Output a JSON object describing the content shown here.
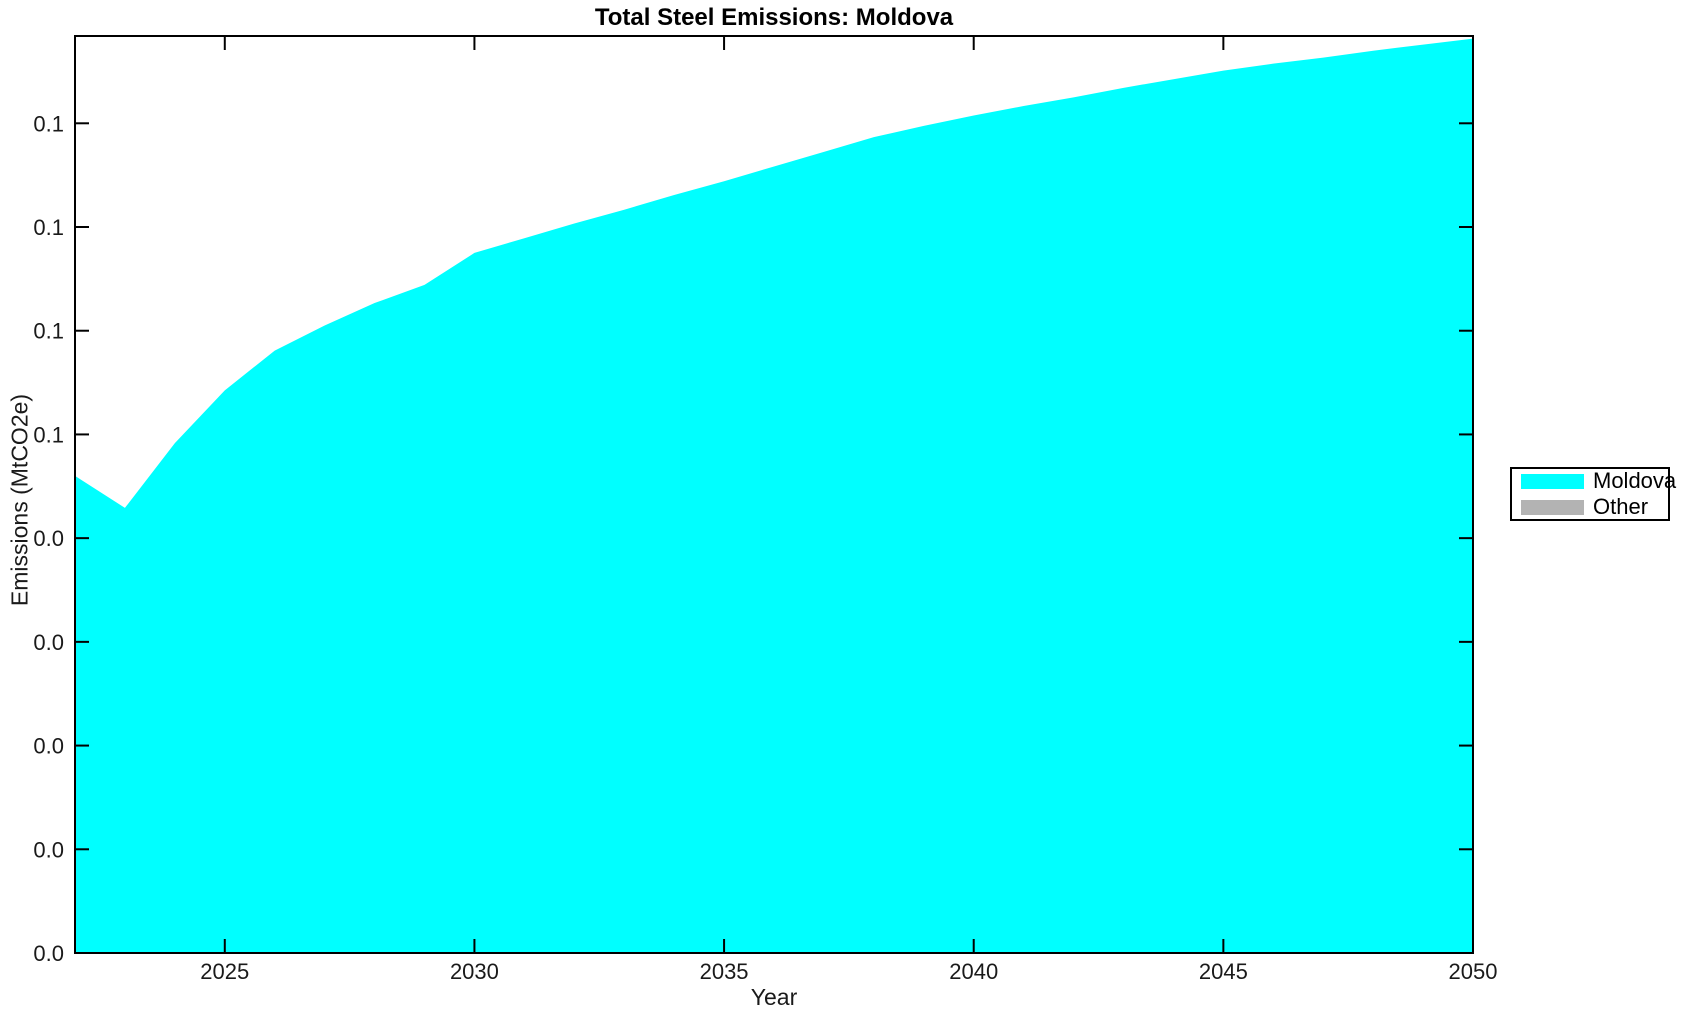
{
  "title": "Total Steel Emissions: Moldova",
  "axes": {
    "xlabel": "Year",
    "ylabel": "Emissions (MtCO2e)"
  },
  "legend": {
    "items": [
      {
        "label": "Moldova",
        "color": "#00FFFF"
      },
      {
        "label": "Other",
        "color": "#B3B3B3"
      }
    ]
  },
  "colors": {
    "area_moldova": "#00FFFF",
    "area_other": "#B3B3B3",
    "axis": "#000000",
    "text": "#1a1a1a",
    "background": "#FFFFFF"
  },
  "chart_data": {
    "type": "area",
    "stacked": true,
    "title": "Total Steel Emissions: Moldova",
    "xlabel": "Year",
    "ylabel": "Emissions (MtCO2e)",
    "grid": false,
    "legend_position": "right-outside",
    "x": [
      2022,
      2023,
      2024,
      2025,
      2026,
      2027,
      2028,
      2029,
      2030,
      2031,
      2032,
      2033,
      2034,
      2035,
      2036,
      2037,
      2038,
      2039,
      2040,
      2041,
      2042,
      2043,
      2044,
      2045,
      2046,
      2047,
      2048,
      2049,
      2050
    ],
    "series": [
      {
        "name": "Moldova",
        "color": "#00FFFF",
        "values": [
          0.0552,
          0.0515,
          0.059,
          0.0651,
          0.0697,
          0.0726,
          0.0752,
          0.0773,
          0.081,
          0.0827,
          0.0844,
          0.086,
          0.0877,
          0.0893,
          0.091,
          0.0927,
          0.0944,
          0.0957,
          0.0969,
          0.098,
          0.099,
          0.1001,
          0.1011,
          0.1021,
          0.1029,
          0.1036,
          0.1044,
          0.1051,
          0.1058
        ]
      },
      {
        "name": "Other",
        "color": "#B3B3B3",
        "values": [
          0,
          0,
          0,
          0,
          0,
          0,
          0,
          0,
          0,
          0,
          0,
          0,
          0,
          0,
          0,
          0,
          0,
          0,
          0,
          0,
          0,
          0,
          0,
          0,
          0,
          0,
          0,
          0,
          0
        ]
      }
    ],
    "xlim": [
      2022,
      2050
    ],
    "ylim": [
      0,
      0.1061
    ],
    "xticks": [
      2025,
      2030,
      2035,
      2040,
      2045,
      2050
    ],
    "xtick_labels": [
      "2025",
      "2030",
      "2035",
      "2040",
      "2045",
      "2050"
    ],
    "ytick_values": [
      0,
      0.012,
      0.024,
      0.036,
      0.048,
      0.06,
      0.072,
      0.084,
      0.096
    ],
    "ytick_labels": [
      "0.0",
      "0.0",
      "0.0",
      "0.0",
      "0.0",
      "0.1",
      "0.1",
      "0.1",
      "0.1"
    ]
  }
}
